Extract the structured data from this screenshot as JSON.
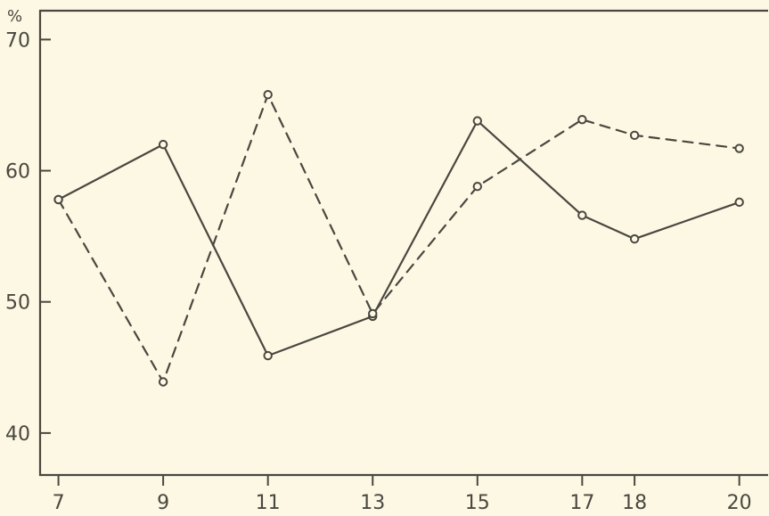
{
  "chart_data": {
    "type": "line",
    "title": "",
    "xlabel": "",
    "ylabel": "",
    "y_unit": "%",
    "x": [
      7,
      9,
      11,
      13,
      15,
      17,
      18,
      20
    ],
    "x_ticks": [
      "7",
      "9",
      "11",
      "13",
      "15",
      "17",
      "18",
      "20"
    ],
    "y_ticks": [
      "40",
      "50",
      "60",
      "70"
    ],
    "ylim": [
      36.8,
      72.2
    ],
    "xlim": [
      6.65,
      20.55
    ],
    "grid": false,
    "legend": "none",
    "series": [
      {
        "style": "solid",
        "color": "#4a4740",
        "marker": "open-circle",
        "values": [
          57.8,
          62.0,
          45.9,
          48.9,
          63.8,
          56.6,
          54.8,
          57.6
        ]
      },
      {
        "style": "dashed",
        "color": "#4a4740",
        "marker": "open-circle",
        "values": [
          57.8,
          43.9,
          65.8,
          49.1,
          58.8,
          63.9,
          62.7,
          61.7
        ]
      }
    ]
  }
}
